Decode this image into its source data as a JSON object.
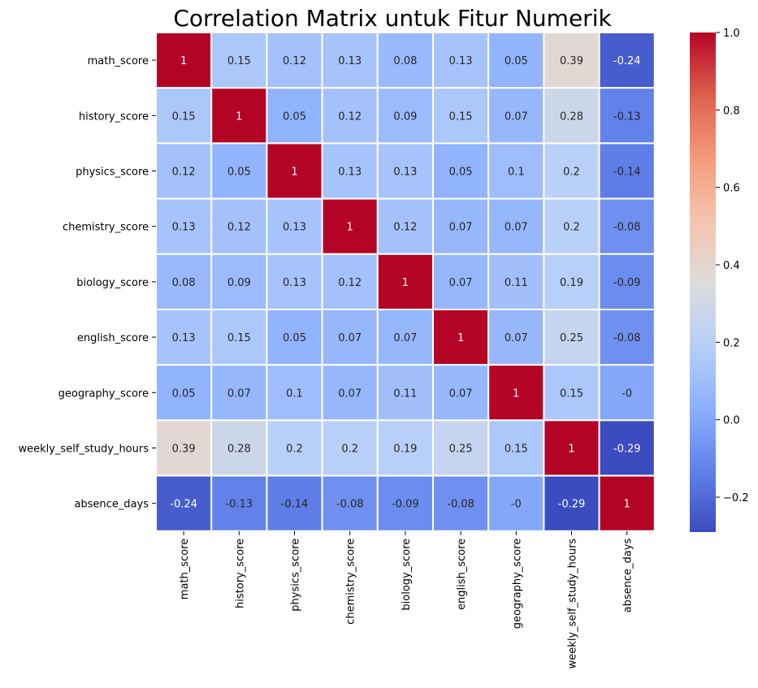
{
  "chart_data": {
    "type": "heatmap",
    "title": "Correlation Matrix untuk Fitur Numerik",
    "labels": [
      "math_score",
      "history_score",
      "physics_score",
      "chemistry_score",
      "biology_score",
      "english_score",
      "geography_score",
      "weekly_self_study_hours",
      "absence_days"
    ],
    "matrix": [
      [
        1,
        0.15,
        0.12,
        0.13,
        0.08,
        0.13,
        0.05,
        0.39,
        -0.24
      ],
      [
        0.15,
        1,
        0.05,
        0.12,
        0.09,
        0.15,
        0.07,
        0.28,
        -0.13
      ],
      [
        0.12,
        0.05,
        1,
        0.13,
        0.13,
        0.05,
        0.1,
        0.2,
        -0.14
      ],
      [
        0.13,
        0.12,
        0.13,
        1,
        0.12,
        0.07,
        0.07,
        0.2,
        -0.08
      ],
      [
        0.08,
        0.09,
        0.13,
        0.12,
        1,
        0.07,
        0.11,
        0.19,
        -0.09
      ],
      [
        0.13,
        0.15,
        0.05,
        0.07,
        0.07,
        1,
        0.07,
        0.25,
        -0.08
      ],
      [
        0.05,
        0.07,
        0.1,
        0.07,
        0.11,
        0.07,
        1,
        0.15,
        -0.0
      ],
      [
        0.39,
        0.28,
        0.2,
        0.2,
        0.19,
        0.25,
        0.15,
        1,
        -0.29
      ],
      [
        -0.24,
        -0.13,
        -0.14,
        -0.08,
        -0.09,
        -0.08,
        -0.0,
        -0.29,
        1
      ]
    ],
    "cell_labels": [
      [
        "1",
        "0.15",
        "0.12",
        "0.13",
        "0.08",
        "0.13",
        "0.05",
        "0.39",
        "-0.24"
      ],
      [
        "0.15",
        "1",
        "0.05",
        "0.12",
        "0.09",
        "0.15",
        "0.07",
        "0.28",
        "-0.13"
      ],
      [
        "0.12",
        "0.05",
        "1",
        "0.13",
        "0.13",
        "0.05",
        "0.1",
        "0.2",
        "-0.14"
      ],
      [
        "0.13",
        "0.12",
        "0.13",
        "1",
        "0.12",
        "0.07",
        "0.07",
        "0.2",
        "-0.08"
      ],
      [
        "0.08",
        "0.09",
        "0.13",
        "0.12",
        "1",
        "0.07",
        "0.11",
        "0.19",
        "-0.09"
      ],
      [
        "0.13",
        "0.15",
        "0.05",
        "0.07",
        "0.07",
        "1",
        "0.07",
        "0.25",
        "-0.08"
      ],
      [
        "0.05",
        "0.07",
        "0.1",
        "0.07",
        "0.11",
        "0.07",
        "1",
        "0.15",
        "-0"
      ],
      [
        "0.39",
        "0.28",
        "0.2",
        "0.2",
        "0.19",
        "0.25",
        "0.15",
        "1",
        "-0.29"
      ],
      [
        "-0.24",
        "-0.13",
        "-0.14",
        "-0.08",
        "-0.09",
        "-0.08",
        "-0",
        "-0.29",
        "1"
      ]
    ],
    "colormap": "coolwarm",
    "color_range": [
      -0.29,
      1.0
    ],
    "colorbar_ticks": [
      1.0,
      0.8,
      0.6,
      0.4,
      0.2,
      0.0,
      -0.2
    ],
    "colorbar_tick_labels": [
      "1.0",
      "0.8",
      "0.6",
      "0.4",
      "0.2",
      "0.0",
      "−0.2"
    ],
    "colors": {
      "low": "#3b4cc0",
      "mid": "#dddcdc",
      "high": "#b40426",
      "cell_border": "#ffffff"
    },
    "legend": "colorbar-right",
    "grid": false
  }
}
